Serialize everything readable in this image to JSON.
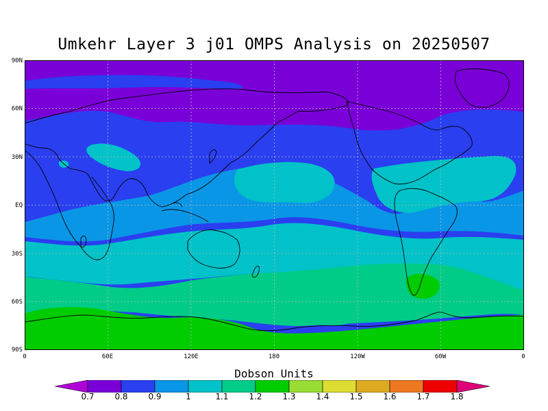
{
  "title": "Umkehr Layer 3 j01 OMPS Analysis on 20250507",
  "y_ticks": [
    "90N",
    "60N",
    "30N",
    "EQ",
    "30S",
    "60S",
    "90S"
  ],
  "x_ticks": [
    "0",
    "60E",
    "120E",
    "180",
    "120W",
    "60W",
    "0"
  ],
  "colorbar": {
    "title": "Dobson Units",
    "labels": [
      "0.7",
      "0.8",
      "0.9",
      "1",
      "1.1",
      "1.2",
      "1.3",
      "1.4",
      "1.5",
      "1.6",
      "1.7",
      "1.8"
    ],
    "colors": [
      "#b000d8",
      "#7a00d8",
      "#2a3ff0",
      "#0a96e6",
      "#00c2c8",
      "#00cc88",
      "#00cc00",
      "#99dd33",
      "#dddd33",
      "#ddaa22",
      "#ee7722",
      "#ee0000",
      "#dd0077"
    ]
  },
  "map": {
    "projection": "cylindrical equidistant",
    "lon_range": [
      0,
      360
    ],
    "lat_range": [
      -90,
      90
    ],
    "variable": "ozone column (Dobson Units)",
    "bands_by_latitude": [
      {
        "lat_from": 90,
        "lat_to": 60,
        "value_range": "0.8–0.9"
      },
      {
        "lat_from": 60,
        "lat_to": 20,
        "value_range": "0.9–1"
      },
      {
        "lat_from": 20,
        "lat_to": -20,
        "value_range": "1–1.1"
      },
      {
        "lat_from": -20,
        "lat_to": -40,
        "value_range": "1–1.2"
      },
      {
        "lat_from": -40,
        "lat_to": -65,
        "value_range": "1.2–1.3"
      },
      {
        "lat_from": -65,
        "lat_to": -90,
        "value_range": "1.3–1.4"
      }
    ]
  }
}
